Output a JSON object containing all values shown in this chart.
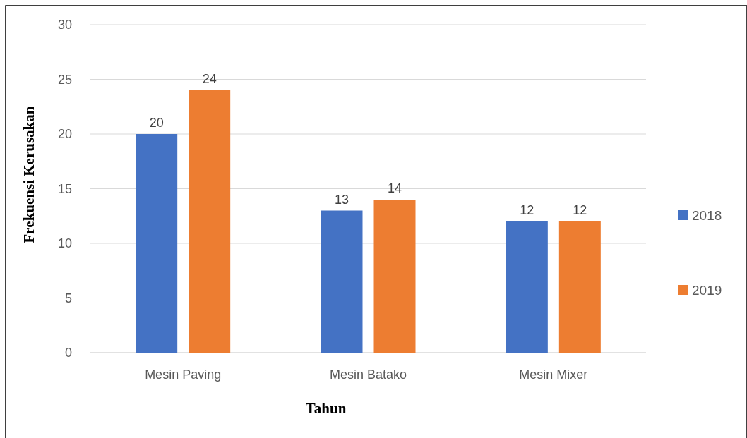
{
  "chart_data": {
    "type": "bar",
    "categories": [
      "Mesin Paving",
      "Mesin Batako",
      "Mesin Mixer"
    ],
    "series": [
      {
        "name": "2018",
        "color": "#4472c4",
        "values": [
          20,
          13,
          12
        ]
      },
      {
        "name": "2019",
        "color": "#ed7d31",
        "values": [
          24,
          14,
          12
        ]
      }
    ],
    "xlabel": "Tahun",
    "ylabel": "Frekuensi Kerusakan",
    "ylim": [
      0,
      30
    ],
    "yticks": [
      0,
      5,
      10,
      15,
      20,
      25,
      30
    ],
    "grid": "y",
    "legend": "right",
    "data_labels": true
  }
}
